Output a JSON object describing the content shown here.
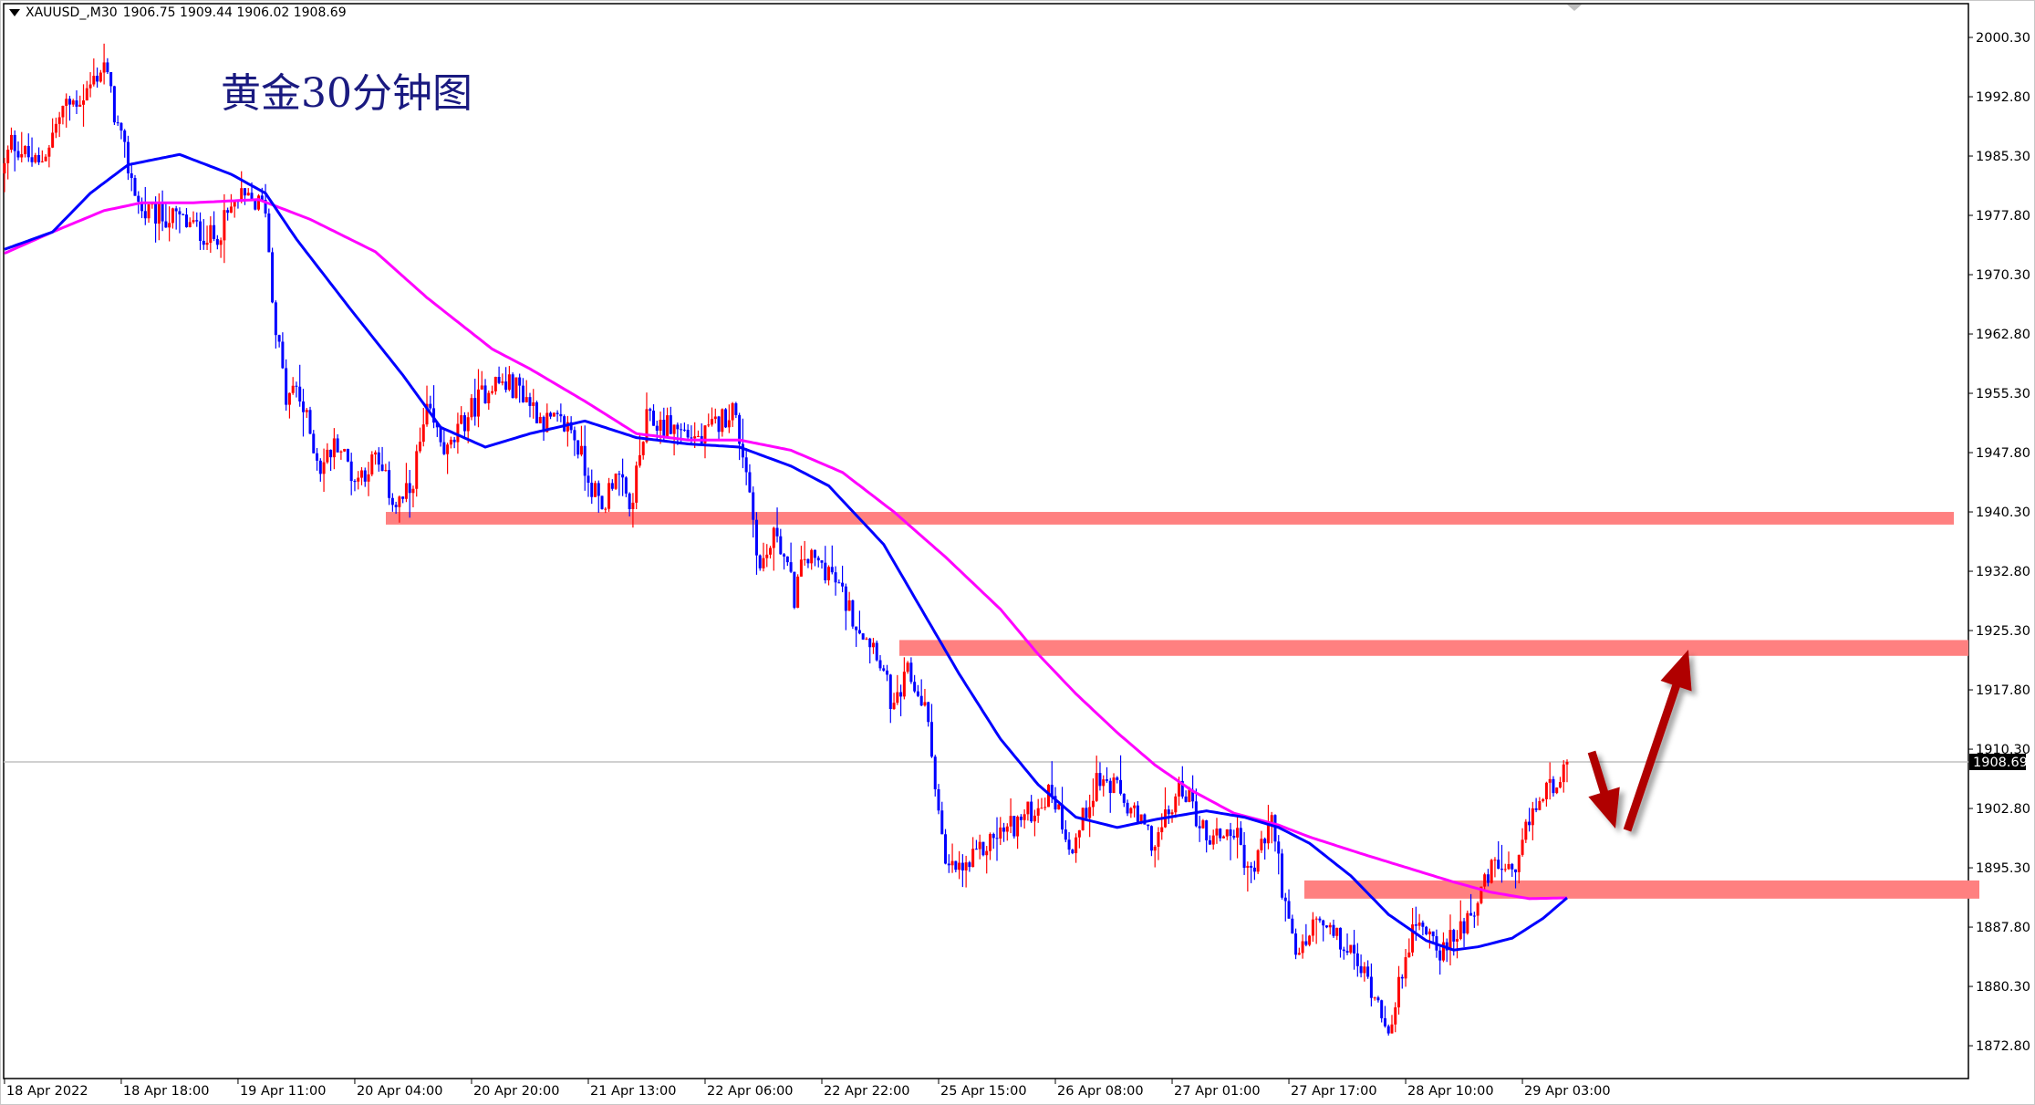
{
  "header": {
    "symbol_timeframe": "XAUUSD_,M30",
    "ohlc": "1906.75 1909.44 1906.02 1908.69"
  },
  "annotation_title": "黄金30分钟图",
  "current_price_label": "1908.69",
  "colors": {
    "bull_candle": "#FF0000",
    "bear_candle": "#0000FF",
    "ma_fast": "#0000FF",
    "ma_slow": "#FF00FF",
    "zone": "#FF8080",
    "arrow": "#B00000",
    "current_price_line": "#C0C0C0",
    "title_text": "#1A1A80"
  },
  "chart_data": {
    "type": "candlestick",
    "symbol": "XAUUSD",
    "timeframe": "M30",
    "ylim": [
      1867.0,
      2004.0
    ],
    "y_ticks": [
      "2000.30",
      "1992.80",
      "1985.30",
      "1977.80",
      "1970.30",
      "1962.80",
      "1955.30",
      "1947.80",
      "1940.30",
      "1932.80",
      "1925.30",
      "1917.80",
      "1910.30",
      "1902.80",
      "1895.30",
      "1887.80",
      "1880.30",
      "1872.80"
    ],
    "x_ticks": [
      {
        "bar": 0,
        "label": "18 Apr 2022"
      },
      {
        "bar": 34,
        "label": "18 Apr 18:00"
      },
      {
        "bar": 68,
        "label": "19 Apr 11:00"
      },
      {
        "bar": 102,
        "label": "20 Apr 04:00"
      },
      {
        "bar": 136,
        "label": "20 Apr 20:00"
      },
      {
        "bar": 170,
        "label": "21 Apr 13:00"
      },
      {
        "bar": 204,
        "label": "22 Apr 06:00"
      },
      {
        "bar": 238,
        "label": "22 Apr 22:00"
      },
      {
        "bar": 272,
        "label": "25 Apr 15:00"
      },
      {
        "bar": 306,
        "label": "26 Apr 08:00"
      },
      {
        "bar": 340,
        "label": "27 Apr 01:00"
      },
      {
        "bar": 374,
        "label": "27 Apr 17:00"
      },
      {
        "bar": 408,
        "label": "28 Apr 10:00"
      },
      {
        "bar": 442,
        "label": "29 Apr 03:00"
      }
    ],
    "bar_count": 456,
    "last_close": 1908.69,
    "price_path": [
      [
        0,
        1983.9
      ],
      [
        2,
        1987.2
      ],
      [
        10,
        1983.9
      ],
      [
        17,
        1991.3
      ],
      [
        23,
        1992.9
      ],
      [
        29,
        1997.0
      ],
      [
        33,
        1988.8
      ],
      [
        36,
        1983.9
      ],
      [
        40,
        1978.1
      ],
      [
        51,
        1977.3
      ],
      [
        61,
        1974.8
      ],
      [
        68,
        1979.8
      ],
      [
        76,
        1979.0
      ],
      [
        78,
        1967.4
      ],
      [
        82,
        1954.3
      ],
      [
        85,
        1956.0
      ],
      [
        92,
        1946.0
      ],
      [
        97,
        1949.3
      ],
      [
        102,
        1944.4
      ],
      [
        108,
        1946.9
      ],
      [
        114,
        1941.1
      ],
      [
        118,
        1942.8
      ],
      [
        123,
        1952.7
      ],
      [
        129,
        1947.7
      ],
      [
        135,
        1952.7
      ],
      [
        142,
        1956.8
      ],
      [
        150,
        1956.0
      ],
      [
        157,
        1951.8
      ],
      [
        165,
        1951.0
      ],
      [
        169,
        1946.0
      ],
      [
        174,
        1940.3
      ],
      [
        178,
        1946.0
      ],
      [
        182,
        1940.3
      ],
      [
        187,
        1951.8
      ],
      [
        195,
        1951.0
      ],
      [
        203,
        1949.4
      ],
      [
        212,
        1953.5
      ],
      [
        216,
        1946.0
      ],
      [
        220,
        1933.0
      ],
      [
        225,
        1937.9
      ],
      [
        230,
        1929.6
      ],
      [
        233,
        1934.6
      ],
      [
        240,
        1933.0
      ],
      [
        248,
        1926.4
      ],
      [
        254,
        1923.1
      ],
      [
        259,
        1914.9
      ],
      [
        263,
        1919.8
      ],
      [
        268,
        1915.7
      ],
      [
        271,
        1906.6
      ],
      [
        274,
        1895.1
      ],
      [
        280,
        1895.1
      ],
      [
        288,
        1899.2
      ],
      [
        297,
        1901.7
      ],
      [
        305,
        1905.0
      ],
      [
        311,
        1897.6
      ],
      [
        318,
        1906.6
      ],
      [
        324,
        1905.0
      ],
      [
        329,
        1901.7
      ],
      [
        335,
        1898.4
      ],
      [
        343,
        1905.8
      ],
      [
        350,
        1899.2
      ],
      [
        358,
        1900.1
      ],
      [
        363,
        1894.3
      ],
      [
        369,
        1901.7
      ],
      [
        373,
        1890.2
      ],
      [
        376,
        1883.6
      ],
      [
        382,
        1888.6
      ],
      [
        392,
        1884.5
      ],
      [
        398,
        1880.4
      ],
      [
        404,
        1874.6
      ],
      [
        408,
        1885.3
      ],
      [
        413,
        1888.6
      ],
      [
        419,
        1884.5
      ],
      [
        425,
        1888.6
      ],
      [
        430,
        1891.9
      ],
      [
        434,
        1896.0
      ],
      [
        440,
        1893.5
      ],
      [
        444,
        1901.7
      ],
      [
        449,
        1905.0
      ],
      [
        455,
        1908.69
      ]
    ],
    "ma_fast": [
      [
        0,
        1973.5
      ],
      [
        14,
        1975.7
      ],
      [
        25,
        1980.6
      ],
      [
        36,
        1984.2
      ],
      [
        51,
        1985.5
      ],
      [
        66,
        1983.0
      ],
      [
        76,
        1980.6
      ],
      [
        85,
        1974.8
      ],
      [
        101,
        1965.8
      ],
      [
        116,
        1957.6
      ],
      [
        127,
        1951.0
      ],
      [
        140,
        1948.5
      ],
      [
        153,
        1950.2
      ],
      [
        169,
        1951.8
      ],
      [
        184,
        1949.7
      ],
      [
        199,
        1948.9
      ],
      [
        214,
        1948.5
      ],
      [
        229,
        1946.1
      ],
      [
        240,
        1943.6
      ],
      [
        256,
        1936.2
      ],
      [
        267,
        1928.0
      ],
      [
        278,
        1919.8
      ],
      [
        290,
        1911.6
      ],
      [
        301,
        1905.8
      ],
      [
        312,
        1901.7
      ],
      [
        324,
        1900.4
      ],
      [
        335,
        1901.4
      ],
      [
        350,
        1902.5
      ],
      [
        361,
        1901.7
      ],
      [
        371,
        1900.4
      ],
      [
        380,
        1898.4
      ],
      [
        392,
        1894.3
      ],
      [
        403,
        1889.4
      ],
      [
        414,
        1886.1
      ],
      [
        422,
        1884.9
      ],
      [
        429,
        1885.3
      ],
      [
        439,
        1886.4
      ],
      [
        448,
        1888.9
      ],
      [
        455,
        1891.5
      ]
    ],
    "ma_slow": [
      [
        0,
        1973.0
      ],
      [
        14,
        1975.7
      ],
      [
        29,
        1978.4
      ],
      [
        40,
        1979.4
      ],
      [
        55,
        1979.4
      ],
      [
        74,
        1979.8
      ],
      [
        89,
        1977.3
      ],
      [
        108,
        1973.2
      ],
      [
        123,
        1967.4
      ],
      [
        142,
        1960.9
      ],
      [
        153,
        1958.4
      ],
      [
        169,
        1954.3
      ],
      [
        184,
        1950.2
      ],
      [
        199,
        1949.4
      ],
      [
        214,
        1949.4
      ],
      [
        229,
        1948.1
      ],
      [
        244,
        1945.3
      ],
      [
        259,
        1940.3
      ],
      [
        274,
        1934.6
      ],
      [
        290,
        1928.0
      ],
      [
        301,
        1922.3
      ],
      [
        312,
        1917.3
      ],
      [
        324,
        1912.4
      ],
      [
        335,
        1908.3
      ],
      [
        346,
        1905.0
      ],
      [
        358,
        1902.2
      ],
      [
        371,
        1900.7
      ],
      [
        380,
        1899.2
      ],
      [
        395,
        1897.1
      ],
      [
        410,
        1895.1
      ],
      [
        422,
        1893.5
      ],
      [
        433,
        1892.2
      ],
      [
        444,
        1891.4
      ],
      [
        455,
        1891.5
      ]
    ],
    "zones": [
      {
        "price_top": 1940.3,
        "price_bottom": 1938.7
      },
      {
        "price_top": 1924.1,
        "price_bottom": 1922.1
      },
      {
        "price_top": 1893.7,
        "price_bottom": 1891.4
      }
    ],
    "arrows": [
      {
        "direction": "down"
      },
      {
        "direction": "up"
      }
    ]
  }
}
